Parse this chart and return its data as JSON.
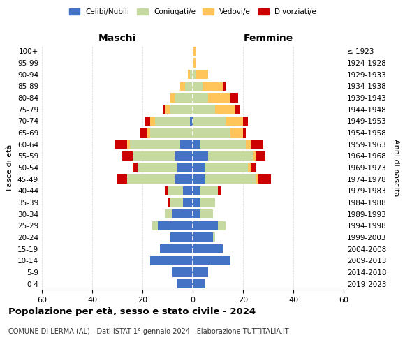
{
  "age_groups": [
    "0-4",
    "5-9",
    "10-14",
    "15-19",
    "20-24",
    "25-29",
    "30-34",
    "35-39",
    "40-44",
    "45-49",
    "50-54",
    "55-59",
    "60-64",
    "65-69",
    "70-74",
    "75-79",
    "80-84",
    "85-89",
    "90-94",
    "95-99",
    "100+"
  ],
  "birth_years": [
    "2019-2023",
    "2014-2018",
    "2009-2013",
    "2004-2008",
    "1999-2003",
    "1994-1998",
    "1989-1993",
    "1984-1988",
    "1979-1983",
    "1974-1978",
    "1969-1973",
    "1964-1968",
    "1959-1963",
    "1954-1958",
    "1949-1953",
    "1944-1948",
    "1939-1943",
    "1934-1938",
    "1929-1933",
    "1924-1928",
    "≤ 1923"
  ],
  "maschi": {
    "celibi": [
      6,
      8,
      17,
      13,
      9,
      14,
      8,
      4,
      4,
      7,
      6,
      7,
      5,
      0,
      1,
      0,
      0,
      0,
      0,
      0,
      0
    ],
    "coniugati": [
      0,
      0,
      0,
      0,
      0,
      2,
      3,
      5,
      6,
      19,
      16,
      17,
      20,
      17,
      14,
      9,
      7,
      3,
      1,
      0,
      0
    ],
    "vedovi": [
      0,
      0,
      0,
      0,
      0,
      0,
      0,
      0,
      0,
      0,
      0,
      0,
      1,
      1,
      2,
      2,
      2,
      2,
      1,
      0,
      0
    ],
    "divorziati": [
      0,
      0,
      0,
      0,
      0,
      0,
      0,
      1,
      1,
      4,
      2,
      4,
      5,
      3,
      2,
      1,
      0,
      0,
      0,
      0,
      0
    ]
  },
  "femmine": {
    "nubili": [
      5,
      6,
      15,
      12,
      8,
      10,
      3,
      3,
      3,
      5,
      5,
      6,
      3,
      0,
      0,
      0,
      0,
      0,
      0,
      0,
      0
    ],
    "coniugate": [
      0,
      0,
      0,
      0,
      1,
      3,
      5,
      6,
      7,
      20,
      17,
      18,
      18,
      15,
      13,
      9,
      6,
      4,
      1,
      0,
      0
    ],
    "vedove": [
      0,
      0,
      0,
      0,
      0,
      0,
      0,
      0,
      0,
      1,
      1,
      1,
      2,
      5,
      7,
      8,
      9,
      8,
      5,
      1,
      1
    ],
    "divorziate": [
      0,
      0,
      0,
      0,
      0,
      0,
      0,
      0,
      1,
      5,
      2,
      4,
      5,
      1,
      2,
      2,
      3,
      1,
      0,
      0,
      0
    ]
  },
  "colors": {
    "celibi": "#4472c4",
    "coniugati": "#c5d9a0",
    "vedovi": "#ffc55a",
    "divorziati": "#cc0000"
  },
  "title": "Popolazione per età, sesso e stato civile - 2024",
  "subtitle": "COMUNE DI LERMA (AL) - Dati ISTAT 1° gennaio 2024 - Elaborazione TUTTITALIA.IT",
  "xlim": 60,
  "ylabel_left": "Fasce di età",
  "ylabel_right": "Anni di nascita",
  "xlabel_left": "Maschi",
  "xlabel_right": "Femmine"
}
